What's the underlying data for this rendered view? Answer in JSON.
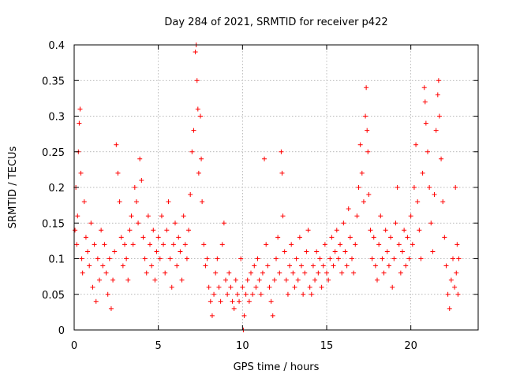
{
  "chart_data": {
    "type": "scatter",
    "title": "Day 284 of 2021, SRMTID for receiver p422",
    "xlabel": "GPS time / hours",
    "ylabel": "SRMTID / TECUs",
    "xlim": [
      0,
      24
    ],
    "ylim": [
      0,
      0.4
    ],
    "xticks": [
      0,
      5,
      10,
      15,
      20
    ],
    "xtick_labels": [
      "0",
      "5",
      "10",
      "15",
      "20"
    ],
    "yticks": [
      0,
      0.05,
      0.1,
      0.15,
      0.2,
      0.25,
      0.3,
      0.35,
      0.4
    ],
    "ytick_labels": [
      "0",
      "0.05",
      "0.1",
      "0.15",
      "0.2",
      "0.25",
      "0.3",
      "0.35",
      "0.4"
    ],
    "grid": true,
    "marker": "+",
    "series": [
      {
        "name": "SRMTID",
        "color": "#ff0000",
        "points": [
          [
            0.05,
            0.14
          ],
          [
            0.1,
            0.2
          ],
          [
            0.15,
            0.12
          ],
          [
            0.2,
            0.16
          ],
          [
            0.25,
            0.25
          ],
          [
            0.3,
            0.29
          ],
          [
            0.35,
            0.31
          ],
          [
            0.4,
            0.22
          ],
          [
            0.45,
            0.1
          ],
          [
            0.5,
            0.08
          ],
          [
            0.6,
            0.18
          ],
          [
            0.7,
            0.13
          ],
          [
            0.8,
            0.11
          ],
          [
            0.9,
            0.09
          ],
          [
            1.0,
            0.15
          ],
          [
            1.1,
            0.06
          ],
          [
            1.2,
            0.12
          ],
          [
            1.3,
            0.04
          ],
          [
            1.4,
            0.1
          ],
          [
            1.5,
            0.07
          ],
          [
            1.6,
            0.14
          ],
          [
            1.7,
            0.09
          ],
          [
            1.8,
            0.12
          ],
          [
            1.9,
            0.08
          ],
          [
            2.0,
            0.05
          ],
          [
            2.1,
            0.1
          ],
          [
            2.2,
            0.03
          ],
          [
            2.3,
            0.07
          ],
          [
            2.4,
            0.11
          ],
          [
            2.5,
            0.26
          ],
          [
            2.6,
            0.22
          ],
          [
            2.7,
            0.18
          ],
          [
            2.8,
            0.13
          ],
          [
            2.9,
            0.09
          ],
          [
            3.0,
            0.12
          ],
          [
            3.1,
            0.1
          ],
          [
            3.2,
            0.07
          ],
          [
            3.3,
            0.14
          ],
          [
            3.4,
            0.16
          ],
          [
            3.5,
            0.12
          ],
          [
            3.6,
            0.2
          ],
          [
            3.7,
            0.18
          ],
          [
            3.8,
            0.15
          ],
          [
            3.9,
            0.24
          ],
          [
            4.0,
            0.21
          ],
          [
            4.1,
            0.13
          ],
          [
            4.2,
            0.1
          ],
          [
            4.3,
            0.08
          ],
          [
            4.4,
            0.16
          ],
          [
            4.5,
            0.12
          ],
          [
            4.6,
            0.09
          ],
          [
            4.7,
            0.14
          ],
          [
            4.8,
            0.07
          ],
          [
            4.9,
            0.11
          ],
          [
            5.0,
            0.13
          ],
          [
            5.1,
            0.1
          ],
          [
            5.2,
            0.16
          ],
          [
            5.3,
            0.12
          ],
          [
            5.4,
            0.08
          ],
          [
            5.5,
            0.14
          ],
          [
            5.6,
            0.18
          ],
          [
            5.7,
            0.1
          ],
          [
            5.8,
            0.06
          ],
          [
            5.9,
            0.12
          ],
          [
            6.0,
            0.15
          ],
          [
            6.1,
            0.09
          ],
          [
            6.2,
            0.13
          ],
          [
            6.3,
            0.11
          ],
          [
            6.4,
            0.07
          ],
          [
            6.5,
            0.16
          ],
          [
            6.6,
            0.12
          ],
          [
            6.7,
            0.1
          ],
          [
            6.8,
            0.14
          ],
          [
            6.9,
            0.19
          ],
          [
            7.0,
            0.25
          ],
          [
            7.1,
            0.28
          ],
          [
            7.2,
            0.39
          ],
          [
            7.25,
            0.4
          ],
          [
            7.3,
            0.35
          ],
          [
            7.35,
            0.31
          ],
          [
            7.4,
            0.22
          ],
          [
            7.5,
            0.3
          ],
          [
            7.55,
            0.24
          ],
          [
            7.6,
            0.18
          ],
          [
            7.7,
            0.12
          ],
          [
            7.8,
            0.09
          ],
          [
            7.9,
            0.1
          ],
          [
            8.0,
            0.06
          ],
          [
            8.1,
            0.04
          ],
          [
            8.2,
            0.02
          ],
          [
            8.3,
            0.05
          ],
          [
            8.4,
            0.08
          ],
          [
            8.5,
            0.1
          ],
          [
            8.6,
            0.06
          ],
          [
            8.7,
            0.04
          ],
          [
            8.8,
            0.12
          ],
          [
            8.9,
            0.15
          ],
          [
            9.0,
            0.07
          ],
          [
            9.1,
            0.05
          ],
          [
            9.2,
            0.08
          ],
          [
            9.3,
            0.06
          ],
          [
            9.4,
            0.04
          ],
          [
            9.5,
            0.03
          ],
          [
            9.6,
            0.07
          ],
          [
            9.7,
            0.05
          ],
          [
            9.8,
            0.04
          ],
          [
            9.9,
            0.1
          ],
          [
            10.0,
            0.06
          ],
          [
            10.05,
            0.0
          ],
          [
            10.1,
            0.02
          ],
          [
            10.2,
            0.05
          ],
          [
            10.3,
            0.07
          ],
          [
            10.4,
            0.04
          ],
          [
            10.5,
            0.08
          ],
          [
            10.6,
            0.05
          ],
          [
            10.7,
            0.09
          ],
          [
            10.8,
            0.06
          ],
          [
            10.9,
            0.1
          ],
          [
            11.0,
            0.07
          ],
          [
            11.1,
            0.05
          ],
          [
            11.2,
            0.08
          ],
          [
            11.3,
            0.24
          ],
          [
            11.4,
            0.12
          ],
          [
            11.5,
            0.09
          ],
          [
            11.6,
            0.06
          ],
          [
            11.7,
            0.04
          ],
          [
            11.8,
            0.02
          ],
          [
            11.9,
            0.07
          ],
          [
            12.0,
            0.1
          ],
          [
            12.1,
            0.13
          ],
          [
            12.2,
            0.08
          ],
          [
            12.3,
            0.25
          ],
          [
            12.35,
            0.22
          ],
          [
            12.4,
            0.16
          ],
          [
            12.5,
            0.11
          ],
          [
            12.6,
            0.07
          ],
          [
            12.7,
            0.05
          ],
          [
            12.8,
            0.09
          ],
          [
            12.9,
            0.12
          ],
          [
            13.0,
            0.08
          ],
          [
            13.1,
            0.06
          ],
          [
            13.2,
            0.1
          ],
          [
            13.3,
            0.07
          ],
          [
            13.4,
            0.13
          ],
          [
            13.5,
            0.09
          ],
          [
            13.6,
            0.05
          ],
          [
            13.7,
            0.08
          ],
          [
            13.8,
            0.11
          ],
          [
            13.9,
            0.14
          ],
          [
            14.0,
            0.06
          ],
          [
            14.1,
            0.05
          ],
          [
            14.2,
            0.09
          ],
          [
            14.3,
            0.07
          ],
          [
            14.4,
            0.11
          ],
          [
            14.5,
            0.08
          ],
          [
            14.6,
            0.1
          ],
          [
            14.7,
            0.06
          ],
          [
            14.8,
            0.09
          ],
          [
            14.9,
            0.12
          ],
          [
            15.0,
            0.08
          ],
          [
            15.1,
            0.07
          ],
          [
            15.2,
            0.1
          ],
          [
            15.3,
            0.13
          ],
          [
            15.4,
            0.09
          ],
          [
            15.5,
            0.11
          ],
          [
            15.6,
            0.14
          ],
          [
            15.7,
            0.1
          ],
          [
            15.8,
            0.12
          ],
          [
            15.9,
            0.08
          ],
          [
            16.0,
            0.15
          ],
          [
            16.1,
            0.11
          ],
          [
            16.2,
            0.09
          ],
          [
            16.3,
            0.17
          ],
          [
            16.4,
            0.13
          ],
          [
            16.5,
            0.1
          ],
          [
            16.6,
            0.08
          ],
          [
            16.7,
            0.12
          ],
          [
            16.8,
            0.16
          ],
          [
            16.9,
            0.2
          ],
          [
            17.0,
            0.26
          ],
          [
            17.1,
            0.22
          ],
          [
            17.2,
            0.18
          ],
          [
            17.3,
            0.3
          ],
          [
            17.35,
            0.34
          ],
          [
            17.4,
            0.28
          ],
          [
            17.45,
            0.25
          ],
          [
            17.5,
            0.19
          ],
          [
            17.6,
            0.14
          ],
          [
            17.7,
            0.1
          ],
          [
            17.8,
            0.13
          ],
          [
            17.9,
            0.09
          ],
          [
            18.0,
            0.07
          ],
          [
            18.1,
            0.12
          ],
          [
            18.2,
            0.16
          ],
          [
            18.3,
            0.1
          ],
          [
            18.4,
            0.08
          ],
          [
            18.5,
            0.14
          ],
          [
            18.6,
            0.11
          ],
          [
            18.7,
            0.09
          ],
          [
            18.8,
            0.13
          ],
          [
            18.9,
            0.06
          ],
          [
            19.0,
            0.1
          ],
          [
            19.1,
            0.15
          ],
          [
            19.2,
            0.2
          ],
          [
            19.3,
            0.12
          ],
          [
            19.4,
            0.08
          ],
          [
            19.5,
            0.11
          ],
          [
            19.6,
            0.14
          ],
          [
            19.7,
            0.09
          ],
          [
            19.8,
            0.13
          ],
          [
            19.9,
            0.1
          ],
          [
            20.0,
            0.16
          ],
          [
            20.1,
            0.12
          ],
          [
            20.2,
            0.2
          ],
          [
            20.3,
            0.26
          ],
          [
            20.4,
            0.18
          ],
          [
            20.5,
            0.14
          ],
          [
            20.6,
            0.1
          ],
          [
            20.7,
            0.22
          ],
          [
            20.8,
            0.34
          ],
          [
            20.85,
            0.32
          ],
          [
            20.9,
            0.29
          ],
          [
            21.0,
            0.25
          ],
          [
            21.1,
            0.2
          ],
          [
            21.2,
            0.15
          ],
          [
            21.3,
            0.11
          ],
          [
            21.4,
            0.19
          ],
          [
            21.5,
            0.28
          ],
          [
            21.6,
            0.33
          ],
          [
            21.65,
            0.35
          ],
          [
            21.7,
            0.3
          ],
          [
            21.8,
            0.24
          ],
          [
            21.9,
            0.18
          ],
          [
            22.0,
            0.13
          ],
          [
            22.1,
            0.09
          ],
          [
            22.2,
            0.05
          ],
          [
            22.3,
            0.03
          ],
          [
            22.4,
            0.07
          ],
          [
            22.5,
            0.1
          ],
          [
            22.6,
            0.06
          ],
          [
            22.65,
            0.2
          ],
          [
            22.7,
            0.08
          ],
          [
            22.75,
            0.12
          ],
          [
            22.8,
            0.05
          ],
          [
            22.85,
            0.1
          ]
        ]
      }
    ]
  }
}
